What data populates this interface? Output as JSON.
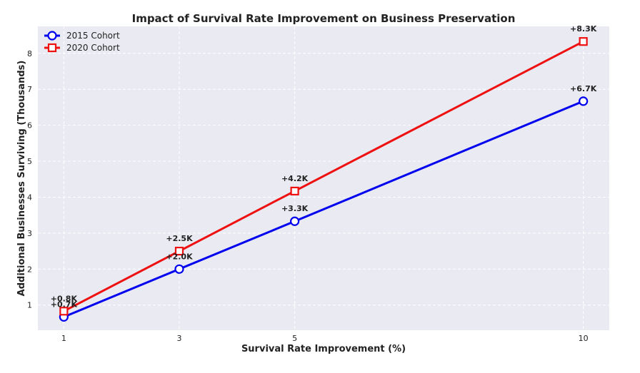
{
  "chart_data": {
    "type": "line",
    "title": "Impact of Survival Rate Improvement on Business Preservation",
    "xlabel": "Survival Rate Improvement (%)",
    "ylabel": "Additional Businesses Surviving (Thousands)",
    "x": [
      1,
      3,
      5,
      10
    ],
    "x_tick_labels": [
      "1",
      "3",
      "5",
      "10"
    ],
    "y_ticks": [
      1,
      2,
      3,
      4,
      5,
      6,
      7,
      8
    ],
    "y_tick_labels": [
      "1",
      "2",
      "3",
      "4",
      "5",
      "6",
      "7",
      "8"
    ],
    "xlim": [
      0.55,
      10.45
    ],
    "ylim": [
      0.3,
      8.75
    ],
    "grid": true,
    "legend_position": "top-left",
    "background_color": "#eaeaf2",
    "series": [
      {
        "name": "2015 Cohort",
        "values": [
          0.67,
          2.0,
          3.33,
          6.67
        ],
        "labels": [
          "+0.7K",
          "+2.0K",
          "+3.3K",
          "+6.7K"
        ],
        "color": "#0000ee",
        "marker": "circle"
      },
      {
        "name": "2020 Cohort",
        "values": [
          0.83,
          2.5,
          4.17,
          8.33
        ],
        "labels": [
          "+0.8K",
          "+2.5K",
          "+4.2K",
          "+8.3K"
        ],
        "color": "#ee1111",
        "marker": "square"
      }
    ]
  }
}
